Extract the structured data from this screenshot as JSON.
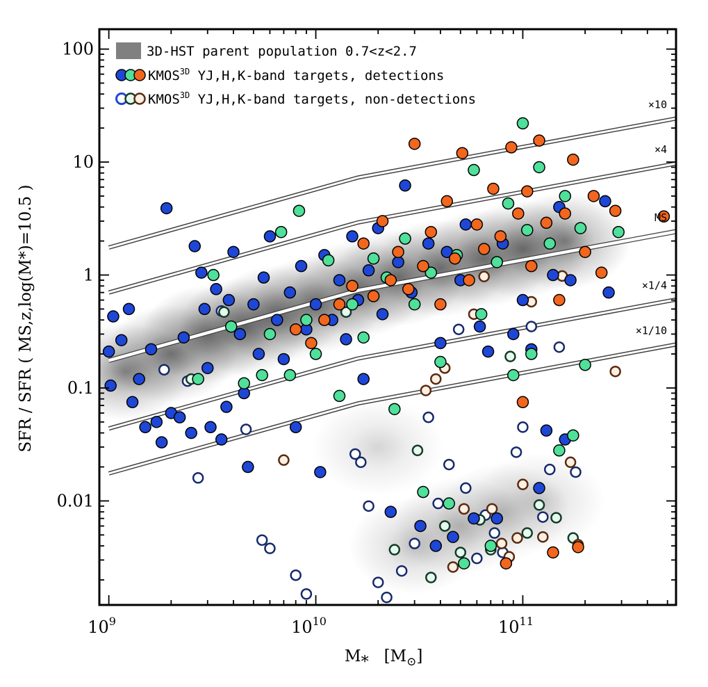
{
  "chart_data": {
    "type": "scatter",
    "x_scale": "log",
    "y_scale": "log",
    "xlim": [
      900000000.0,
      550000000000.0
    ],
    "ylim": [
      0.0012,
      150
    ],
    "xlabel": "M",
    "xlabel_sub": "*",
    "xlabel_unit": "[M",
    "xlabel_unit_sub": "⊙",
    "xlabel_unit_close": "]",
    "ylabel": "SFR / SFR ( MS,z,log(M*)=10.5 )",
    "x_ticks": [
      {
        "value": 1000000000.0,
        "base": "10",
        "exp": "9"
      },
      {
        "value": 10000000000.0,
        "base": "10",
        "exp": "10"
      },
      {
        "value": 100000000000.0,
        "base": "10",
        "exp": "11"
      }
    ],
    "y_ticks": [
      {
        "value": 100,
        "label": "100"
      },
      {
        "value": 10,
        "label": "10"
      },
      {
        "value": 1,
        "label": "1"
      },
      {
        "value": 0.1,
        "label": "0.1"
      },
      {
        "value": 0.01,
        "label": "0.01"
      }
    ],
    "legend": {
      "placement": "top-left",
      "entries": [
        {
          "text": "3D-HST parent population 0.7<z<2.7",
          "kind": "gray-box"
        },
        {
          "text": "KMOS",
          "sup": "3D",
          "rest": " YJ,H,K-band targets, detections",
          "kind": "filled"
        },
        {
          "text": "KMOS",
          "sup": "3D",
          "rest": " YJ,H,K-band targets, non-detections",
          "kind": "open"
        }
      ]
    },
    "bands": [
      {
        "label": "×10",
        "factor": 10
      },
      {
        "label": "×4",
        "factor": 4
      },
      {
        "label": "MS",
        "factor": 1
      },
      {
        "label": "×1/4",
        "factor": 0.25
      },
      {
        "label": "×1/10",
        "factor": 0.1
      }
    ],
    "ms_relation": [
      [
        1000000000.0,
        0.175
      ],
      [
        16000000000.0,
        0.73
      ],
      [
        600000000000.0,
        2.5
      ]
    ],
    "series": [
      {
        "name": "YJ",
        "fill": "#1f47d6",
        "open_fill": "#ffffff",
        "detections": [
          [
            1000000000.0,
            0.21
          ],
          [
            1020000000.0,
            0.105
          ],
          [
            1050000000.0,
            0.43
          ],
          [
            1150000000.0,
            0.265
          ],
          [
            1250000000.0,
            0.5
          ],
          [
            1300000000.0,
            0.075
          ],
          [
            1400000000.0,
            0.12
          ],
          [
            1500000000.0,
            0.045
          ],
          [
            1600000000.0,
            0.22
          ],
          [
            1700000000.0,
            0.05
          ],
          [
            1800000000.0,
            0.033
          ],
          [
            1900000000.0,
            3.9
          ],
          [
            2000000000.0,
            0.06
          ],
          [
            2200000000.0,
            0.055
          ],
          [
            2300000000.0,
            0.28
          ],
          [
            2500000000.0,
            0.04
          ],
          [
            2600000000.0,
            1.8
          ],
          [
            2800000000.0,
            1.05
          ],
          [
            2900000000.0,
            0.5
          ],
          [
            3000000000.0,
            0.15
          ],
          [
            3100000000.0,
            0.045
          ],
          [
            3300000000.0,
            0.75
          ],
          [
            3500000000.0,
            0.035
          ],
          [
            3700000000.0,
            0.068
          ],
          [
            3800000000.0,
            0.6
          ],
          [
            4000000000.0,
            1.6
          ],
          [
            4300000000.0,
            0.3
          ],
          [
            4500000000.0,
            0.09
          ],
          [
            4700000000.0,
            0.02
          ],
          [
            5000000000.0,
            0.55
          ],
          [
            5300000000.0,
            0.2
          ],
          [
            5600000000.0,
            0.95
          ],
          [
            6000000000.0,
            2.2
          ],
          [
            6500000000.0,
            0.4
          ],
          [
            7000000000.0,
            0.18
          ],
          [
            7500000000.0,
            0.7
          ],
          [
            8000000000.0,
            0.045
          ],
          [
            8500000000.0,
            1.2
          ],
          [
            9000000000.0,
            0.33
          ],
          [
            10000000000.0,
            0.55
          ],
          [
            10500000000.0,
            0.018
          ],
          [
            11000000000.0,
            1.5
          ],
          [
            12000000000.0,
            0.4
          ],
          [
            13000000000.0,
            0.9
          ],
          [
            14000000000.0,
            0.27
          ],
          [
            15000000000.0,
            2.2
          ],
          [
            16000000000.0,
            0.6
          ],
          [
            17000000000.0,
            0.12
          ],
          [
            18000000000.0,
            1.1
          ],
          [
            20000000000.0,
            2.6
          ],
          [
            21000000000.0,
            0.45
          ],
          [
            23000000000.0,
            0.008
          ],
          [
            25000000000.0,
            1.3
          ],
          [
            27000000000.0,
            6.2
          ],
          [
            29000000000.0,
            0.7
          ],
          [
            32000000000.0,
            0.006
          ],
          [
            35000000000.0,
            1.9
          ],
          [
            38000000000.0,
            0.004
          ],
          [
            40000000000.0,
            0.25
          ],
          [
            43000000000.0,
            1.6
          ],
          [
            46000000000.0,
            0.0048
          ],
          [
            50000000000.0,
            0.9
          ],
          [
            53000000000.0,
            2.8
          ],
          [
            58000000000.0,
            0.007
          ],
          [
            62000000000.0,
            0.35
          ],
          [
            68000000000.0,
            0.21
          ],
          [
            75000000000.0,
            0.007
          ],
          [
            80000000000.0,
            1.9
          ],
          [
            90000000000.0,
            0.3
          ],
          [
            100000000000.0,
            0.6
          ],
          [
            110000000000.0,
            0.22
          ],
          [
            120000000000.0,
            0.013
          ],
          [
            130000000000.0,
            0.042
          ],
          [
            140000000000.0,
            1.0
          ],
          [
            150000000000.0,
            4.0
          ],
          [
            160000000000.0,
            0.035
          ],
          [
            170000000000.0,
            0.9
          ],
          [
            250000000000.0,
            4.5
          ],
          [
            260000000000.0,
            0.7
          ]
        ]
      },
      {
        "name": "H",
        "fill": "#4fe09a",
        "open_fill": "#e4fbee",
        "detections": [
          [
            2700000000.0,
            0.12
          ],
          [
            3200000000.0,
            1.0
          ],
          [
            3900000000.0,
            0.35
          ],
          [
            4500000000.0,
            0.11
          ],
          [
            5500000000.0,
            0.13
          ],
          [
            6000000000.0,
            0.3
          ],
          [
            6800000000.0,
            2.4
          ],
          [
            7500000000.0,
            0.13
          ],
          [
            8300000000.0,
            3.7
          ],
          [
            9000000000.0,
            0.4
          ],
          [
            10000000000.0,
            0.2
          ],
          [
            11500000000.0,
            1.35
          ],
          [
            13000000000.0,
            0.085
          ],
          [
            15000000000.0,
            0.55
          ],
          [
            17000000000.0,
            0.28
          ],
          [
            19000000000.0,
            1.4
          ],
          [
            22000000000.0,
            0.95
          ],
          [
            24000000000.0,
            0.065
          ],
          [
            27000000000.0,
            2.1
          ],
          [
            30000000000.0,
            0.55
          ],
          [
            33000000000.0,
            0.012
          ],
          [
            36000000000.0,
            1.05
          ],
          [
            40000000000.0,
            0.17
          ],
          [
            44000000000.0,
            0.0095
          ],
          [
            48000000000.0,
            1.5
          ],
          [
            52000000000.0,
            0.0028
          ],
          [
            58000000000.0,
            8.5
          ],
          [
            63000000000.0,
            0.45
          ],
          [
            70000000000.0,
            0.004
          ],
          [
            75000000000.0,
            1.3
          ],
          [
            85000000000.0,
            4.3
          ],
          [
            90000000000.0,
            0.13
          ],
          [
            100000000000.0,
            22
          ],
          [
            105000000000.0,
            2.5
          ],
          [
            110000000000.0,
            0.2
          ],
          [
            120000000000.0,
            9.0
          ],
          [
            135000000000.0,
            1.9
          ],
          [
            150000000000.0,
            0.028
          ],
          [
            160000000000.0,
            5.0
          ],
          [
            175000000000.0,
            0.038
          ],
          [
            190000000000.0,
            2.6
          ],
          [
            200000000000.0,
            0.16
          ],
          [
            290000000000.0,
            2.4
          ]
        ]
      },
      {
        "name": "K",
        "fill": "#f3661e",
        "open_fill": "#fcefe3",
        "detections": [
          [
            8000000000.0,
            0.33
          ],
          [
            9500000000.0,
            0.25
          ],
          [
            11000000000.0,
            0.4
          ],
          [
            13000000000.0,
            0.55
          ],
          [
            15000000000.0,
            0.8
          ],
          [
            17000000000.0,
            1.9
          ],
          [
            19000000000.0,
            0.65
          ],
          [
            21000000000.0,
            3.0
          ],
          [
            23000000000.0,
            0.9
          ],
          [
            25000000000.0,
            1.6
          ],
          [
            28000000000.0,
            0.75
          ],
          [
            30000000000.0,
            14.5
          ],
          [
            33000000000.0,
            1.2
          ],
          [
            36000000000.0,
            2.4
          ],
          [
            40000000000.0,
            0.55
          ],
          [
            43000000000.0,
            4.5
          ],
          [
            47000000000.0,
            1.4
          ],
          [
            51000000000.0,
            12
          ],
          [
            55000000000.0,
            0.9
          ],
          [
            60000000000.0,
            2.8
          ],
          [
            65000000000.0,
            1.7
          ],
          [
            72000000000.0,
            5.8
          ],
          [
            78000000000.0,
            2.2
          ],
          [
            83000000000.0,
            0.0028
          ],
          [
            88000000000.0,
            13.5
          ],
          [
            95000000000.0,
            3.5
          ],
          [
            100000000000.0,
            0.075
          ],
          [
            105000000000.0,
            5.5
          ],
          [
            110000000000.0,
            1.2
          ],
          [
            120000000000.0,
            15.5
          ],
          [
            130000000000.0,
            2.9
          ],
          [
            140000000000.0,
            0.0035
          ],
          [
            150000000000.0,
            0.6
          ],
          [
            160000000000.0,
            3.5
          ],
          [
            175000000000.0,
            10.5
          ],
          [
            185000000000.0,
            0.0039
          ],
          [
            200000000000.0,
            1.6
          ],
          [
            220000000000.0,
            5.0
          ],
          [
            240000000000.0,
            1.05
          ],
          [
            280000000000.0,
            3.7
          ],
          [
            480000000000.0,
            3.3
          ]
        ]
      }
    ],
    "non_detections": [
      {
        "series": "YJ",
        "points": [
          [
            1850000000.0,
            0.145
          ],
          [
            2400000000.0,
            0.115
          ],
          [
            2700000000.0,
            0.016
          ],
          [
            3500000000.0,
            0.48
          ],
          [
            4600000000.0,
            0.043
          ],
          [
            5500000000.0,
            0.0045
          ],
          [
            6000000000.0,
            0.0038
          ],
          [
            8000000000.0,
            0.0022
          ],
          [
            9000000000.0,
            0.0015
          ],
          [
            15500000000.0,
            0.026
          ],
          [
            16500000000.0,
            0.022
          ],
          [
            18000000000.0,
            0.009
          ],
          [
            20000000000.0,
            0.0019
          ],
          [
            22000000000.0,
            0.0014
          ],
          [
            26000000000.0,
            0.0024
          ],
          [
            30000000000.0,
            0.0042
          ],
          [
            35000000000.0,
            0.055
          ],
          [
            39000000000.0,
            0.0095
          ],
          [
            44000000000.0,
            0.021
          ],
          [
            49000000000.0,
            0.33
          ],
          [
            53000000000.0,
            0.013
          ],
          [
            60000000000.0,
            0.0031
          ],
          [
            66000000000.0,
            0.0075
          ],
          [
            73000000000.0,
            0.0052
          ],
          [
            80000000000.0,
            0.0035
          ],
          [
            93000000000.0,
            0.027
          ],
          [
            100000000000.0,
            0.045
          ],
          [
            110000000000.0,
            0.35
          ],
          [
            125000000000.0,
            0.0072
          ],
          [
            135000000000.0,
            0.019
          ],
          [
            150000000000.0,
            0.23
          ],
          [
            180000000000.0,
            0.018
          ]
        ]
      },
      {
        "series": "H",
        "points": [
          [
            2500000000.0,
            0.12
          ],
          [
            3600000000.0,
            0.47
          ],
          [
            14000000000.0,
            0.47
          ],
          [
            24000000000.0,
            0.0037
          ],
          [
            31000000000.0,
            0.028
          ],
          [
            36000000000.0,
            0.0021
          ],
          [
            42000000000.0,
            0.006
          ],
          [
            50000000000.0,
            0.0035
          ],
          [
            62000000000.0,
            0.0068
          ],
          [
            70000000000.0,
            0.0037
          ],
          [
            87000000000.0,
            0.19
          ],
          [
            105000000000.0,
            0.0052
          ],
          [
            120000000000.0,
            0.0092
          ],
          [
            145000000000.0,
            0.0071
          ],
          [
            175000000000.0,
            0.0047
          ]
        ]
      },
      {
        "series": "K",
        "points": [
          [
            7000000000.0,
            0.023
          ],
          [
            34000000000.0,
            0.095
          ],
          [
            38000000000.0,
            0.12
          ],
          [
            42000000000.0,
            0.15
          ],
          [
            46000000000.0,
            0.0026
          ],
          [
            52000000000.0,
            0.0085
          ],
          [
            58000000000.0,
            0.45
          ],
          [
            65000000000.0,
            0.97
          ],
          [
            71000000000.0,
            0.0085
          ],
          [
            79000000000.0,
            0.0042
          ],
          [
            86000000000.0,
            0.0032
          ],
          [
            94000000000.0,
            0.0047
          ],
          [
            100000000000.0,
            0.014
          ],
          [
            110000000000.0,
            0.58
          ],
          [
            125000000000.0,
            0.0048
          ],
          [
            140000000000.0,
            0.0035
          ],
          [
            155000000000.0,
            0.98
          ],
          [
            170000000000.0,
            0.022
          ],
          [
            185000000000.0,
            0.0041
          ],
          [
            280000000000.0,
            0.14
          ]
        ]
      }
    ],
    "background_density": {
      "description_free": true,
      "blobs": [
        [
          1200000000.0,
          0.14,
          1.0
        ],
        [
          2000000000.0,
          0.2,
          1.0
        ],
        [
          3000000000.0,
          0.3,
          1.0
        ],
        [
          4500000000.0,
          0.35,
          1.0
        ],
        [
          6500000000.0,
          0.45,
          1.0
        ],
        [
          10000000000.0,
          0.55,
          1.0
        ],
        [
          16000000000.0,
          0.75,
          1.0
        ],
        [
          25000000000.0,
          0.95,
          1.0
        ],
        [
          40000000000.0,
          1.15,
          1.0
        ],
        [
          65000000000.0,
          1.4,
          1.0
        ],
        [
          100000000000.0,
          1.7,
          1.0
        ],
        [
          160000000000.0,
          2.0,
          1.0
        ],
        [
          50000000000.0,
          0.006,
          0.55
        ],
        [
          80000000000.0,
          0.008,
          0.45
        ],
        [
          30000000000.0,
          0.004,
          0.5
        ],
        [
          120000000000.0,
          0.01,
          0.4
        ],
        [
          20000000000.0,
          0.03,
          0.35
        ]
      ]
    }
  }
}
